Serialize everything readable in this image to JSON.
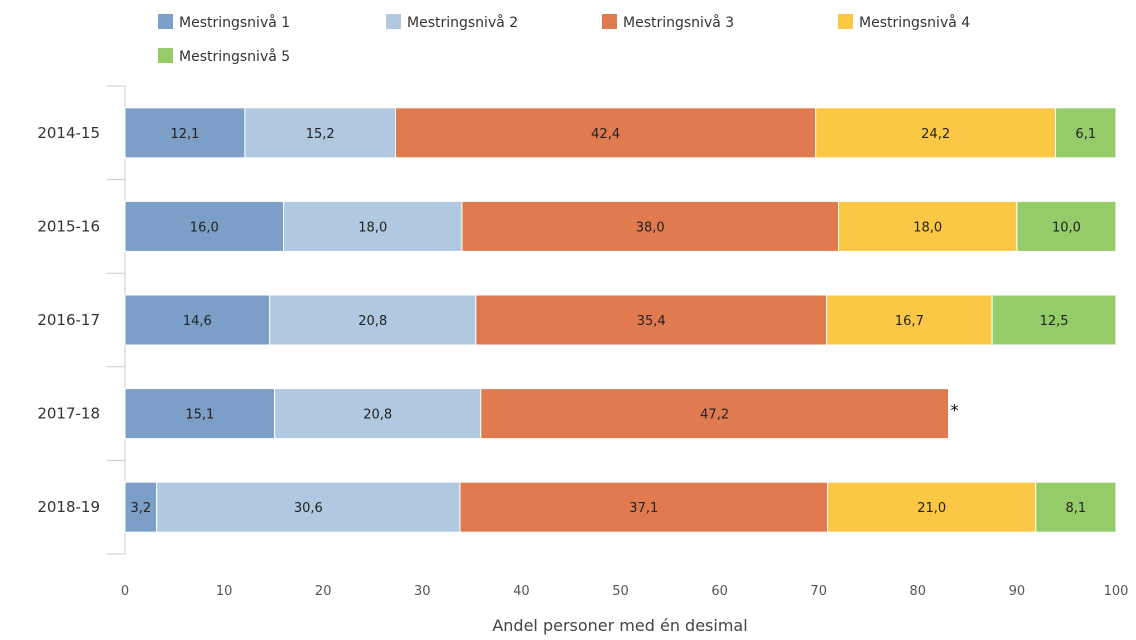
{
  "chart_data": {
    "type": "bar",
    "orientation": "horizontal",
    "stacked": true,
    "categories": [
      "2014-15",
      "2015-16",
      "2016-17",
      "2017-18",
      "2018-19"
    ],
    "series": [
      {
        "name": "Mestringsnivå 1",
        "color": "#7b9fc7",
        "values": [
          12.1,
          16.0,
          14.6,
          15.1,
          3.2
        ]
      },
      {
        "name": "Mestringsnivå 2",
        "color": "#b0c8e0",
        "values": [
          15.2,
          18.0,
          20.8,
          20.8,
          30.6
        ]
      },
      {
        "name": "Mestringsnivå 3",
        "color": "#e07b4f",
        "values": [
          42.4,
          38.0,
          35.4,
          47.2,
          37.1
        ]
      },
      {
        "name": "Mestringsnivå 4",
        "color": "#fcc744",
        "values": [
          24.2,
          18.0,
          16.7,
          null,
          21.0
        ]
      },
      {
        "name": "Mestringsnivå 5",
        "color": "#94cc6a",
        "values": [
          6.1,
          10.0,
          12.5,
          null,
          8.1
        ]
      }
    ],
    "data_labels": [
      [
        "12,1",
        "16,0",
        "14,6",
        "15,1",
        "3,2"
      ],
      [
        "15,2",
        "18,0",
        "20,8",
        "20,8",
        "30,6"
      ],
      [
        "42,4",
        "38,0",
        "35,4",
        "47,2",
        "37,1"
      ],
      [
        "24,2",
        "18,0",
        "16,7",
        "",
        "21,0"
      ],
      [
        "6,1",
        "10,0",
        "12,5",
        "",
        "8,1"
      ]
    ],
    "annotations": [
      {
        "category": "2017-18",
        "text": "*"
      }
    ],
    "xlabel": "Andel personer med én desimal",
    "ylabel": "",
    "xlim": [
      0,
      100
    ],
    "xticks": [
      0,
      10,
      20,
      30,
      40,
      50,
      60,
      70,
      80,
      90,
      100
    ],
    "grid": false,
    "legend_position": "top-left"
  }
}
